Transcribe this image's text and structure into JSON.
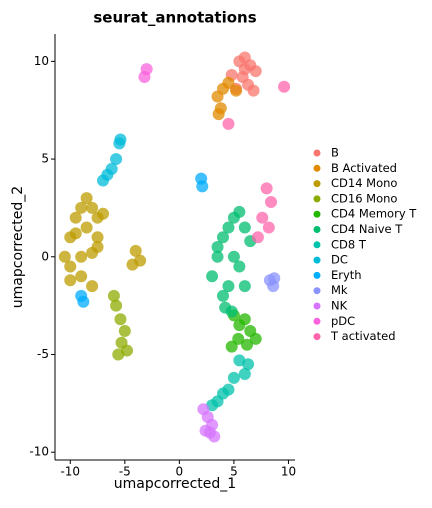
{
  "chart_data": {
    "type": "scatter",
    "title": "seurat_annotations",
    "x_label": "umapcorrected_1",
    "y_label": "umapcorrected_2",
    "xlim": [
      -11.4,
      10.6
    ],
    "ylim": [
      -10.4,
      11.4
    ],
    "xticks": [
      -10,
      -5,
      0,
      5,
      10
    ],
    "yticks": [
      -10,
      -5,
      0,
      5,
      10
    ],
    "series": [
      {
        "name": "B",
        "color": "#F8766D",
        "x": [
          5.5,
          6,
          6.5,
          7,
          5.8,
          6.3,
          4.8,
          5.2,
          6.8,
          6
        ],
        "y": [
          10,
          10.2,
          9.8,
          9.5,
          9.2,
          8.8,
          9.3,
          8.6,
          8.5,
          9.6
        ]
      },
      {
        "name": "B Activated",
        "color": "#E18A00",
        "x": [
          3.5,
          4,
          3.8,
          4.5,
          5.2,
          3.6
        ],
        "y": [
          8.2,
          8.6,
          7.6,
          8.9,
          8.5,
          7.3
        ]
      },
      {
        "name": "CD14 Mono",
        "color": "#BE9C00",
        "x": [
          -10.5,
          -10,
          -9.5,
          -9,
          -8.5,
          -8,
          -7.5,
          -7,
          -10,
          -9,
          -8,
          -7.5,
          -9.5,
          -8.5,
          -7.5,
          -10,
          -9,
          -8,
          -4,
          -3.6,
          -4.3
        ],
        "y": [
          0,
          1,
          2,
          2.5,
          3,
          2.5,
          2,
          2.2,
          -0.5,
          -1,
          -1.5,
          0.5,
          1.2,
          1.5,
          1,
          -1.2,
          0,
          0.2,
          0.3,
          -0.2,
          -0.4
        ]
      },
      {
        "name": "CD16 Mono",
        "color": "#8CAB00",
        "x": [
          -5.8,
          -5.4,
          -5,
          -5.3,
          -4.8,
          -5.6,
          -6
        ],
        "y": [
          -2.5,
          -3.2,
          -3.8,
          -4.4,
          -4.8,
          -5,
          -2
        ]
      },
      {
        "name": "CD4 Memory T",
        "color": "#24B700",
        "x": [
          5,
          5.5,
          6,
          6.5,
          7,
          6.2,
          5.4,
          4.8
        ],
        "y": [
          -3,
          -3.5,
          -3.2,
          -3.8,
          -4.2,
          -4.5,
          -4.2,
          -4.6
        ]
      },
      {
        "name": "CD4 Naive T",
        "color": "#00BE70",
        "x": [
          3,
          3.5,
          4,
          4.5,
          5,
          5.5,
          6,
          6.5,
          4,
          4.5,
          5,
          3.5,
          5.5,
          6,
          4.2,
          4.8
        ],
        "y": [
          -1,
          0,
          1,
          1.5,
          2,
          2.3,
          1.5,
          0.8,
          -2,
          -1.5,
          0,
          0.5,
          -0.5,
          -1.5,
          -2.6,
          -2.8
        ]
      },
      {
        "name": "CD8 T",
        "color": "#00C1AB",
        "x": [
          5.5,
          6,
          5,
          4.5,
          4,
          3.5,
          3,
          6.3
        ],
        "y": [
          -5.3,
          -6,
          -6.2,
          -6.8,
          -7,
          -7.4,
          -7.6,
          -5.5
        ]
      },
      {
        "name": "DC",
        "color": "#00BBDA",
        "x": [
          -5.5,
          -5.8,
          -6.2,
          -6.6,
          -7,
          -5.4
        ],
        "y": [
          5.8,
          5,
          4.5,
          4.2,
          3.9,
          6
        ]
      },
      {
        "name": "Eryth",
        "color": "#00ACFC",
        "x": [
          2,
          2.1,
          -9,
          -8.8
        ],
        "y": [
          4,
          3.6,
          -2,
          -2.3
        ]
      },
      {
        "name": "Mk",
        "color": "#8B93FF",
        "x": [
          8.3,
          8.6,
          8.7
        ],
        "y": [
          -1.2,
          -1.5,
          -1.1
        ]
      },
      {
        "name": "NK",
        "color": "#D575FE",
        "x": [
          2.2,
          2.6,
          3,
          2.8,
          3.2,
          2.4
        ],
        "y": [
          -7.8,
          -8.2,
          -8.6,
          -9,
          -9.2,
          -8.9
        ]
      },
      {
        "name": "pDC",
        "color": "#F962DD",
        "x": [
          -3,
          -3.2
        ],
        "y": [
          9.6,
          9.2
        ]
      },
      {
        "name": "T activated",
        "color": "#FF65AC",
        "x": [
          8,
          8.4,
          7.6,
          8.2,
          7.2,
          4.5,
          9.6
        ],
        "y": [
          3.5,
          2.8,
          2,
          1.5,
          1,
          6.8,
          8.7
        ]
      }
    ]
  }
}
